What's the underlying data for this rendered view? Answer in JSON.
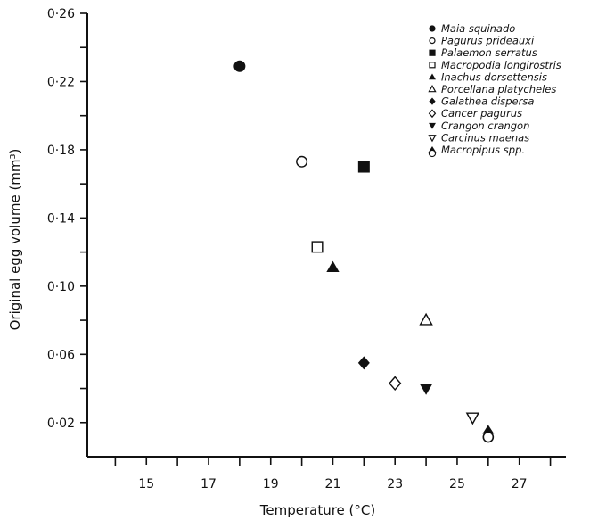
{
  "chart_data": {
    "type": "scatter",
    "title": "",
    "xlabel": "Temperature (°C)",
    "ylabel": "Original egg volume (mm³)",
    "xlim": [
      13.1,
      28.5
    ],
    "ylim": [
      0,
      0.26
    ],
    "x_ticks_major": [
      15,
      17,
      19,
      21,
      23,
      25,
      27
    ],
    "x_ticks_labels": [
      "15",
      "17",
      "19",
      "21",
      "23",
      "25",
      "27"
    ],
    "y_ticks_major": [
      0.02,
      0.06,
      0.1,
      0.14,
      0.18,
      0.22,
      0.26
    ],
    "y_ticks_labels": [
      "0·02",
      "0·06",
      "0·10",
      "0·14",
      "0·18",
      "0·22",
      "0·26"
    ],
    "grid": false,
    "legend_placement": "top-right",
    "series": [
      {
        "name": "Maia squinado",
        "marker": "circle-filled",
        "x": [
          18.0
        ],
        "y": [
          0.229
        ]
      },
      {
        "name": "Pagurus prideauxi",
        "marker": "circle-open",
        "x": [
          20.0
        ],
        "y": [
          0.173
        ]
      },
      {
        "name": "Palaemon serratus",
        "marker": "square-filled",
        "x": [
          22.0
        ],
        "y": [
          0.17
        ]
      },
      {
        "name": "Macropodia longirostris",
        "marker": "square-open",
        "x": [
          20.5
        ],
        "y": [
          0.123
        ]
      },
      {
        "name": "Inachus dorsettensis",
        "marker": "triangle-up-filled",
        "x": [
          21.0
        ],
        "y": [
          0.111
        ]
      },
      {
        "name": "Porcellana platycheles",
        "marker": "triangle-up-open",
        "x": [
          24.0
        ],
        "y": [
          0.08
        ]
      },
      {
        "name": "Galathea dispersa",
        "marker": "diamond-filled",
        "x": [
          22.0
        ],
        "y": [
          0.055
        ]
      },
      {
        "name": "Cancer pagurus",
        "marker": "diamond-open",
        "x": [
          23.0
        ],
        "y": [
          0.043
        ]
      },
      {
        "name": "Crangon crangon",
        "marker": "triangle-down-filled",
        "x": [
          24.0
        ],
        "y": [
          0.04
        ]
      },
      {
        "name": "Carcinus maenas",
        "marker": "triangle-down-open",
        "x": [
          25.5
        ],
        "y": [
          0.023
        ]
      },
      {
        "name": "Macropipus spp.",
        "marker": "half-triangle-circle",
        "x": [
          26.0,
          26.0
        ],
        "y": [
          0.015,
          0.012
        ]
      }
    ]
  }
}
